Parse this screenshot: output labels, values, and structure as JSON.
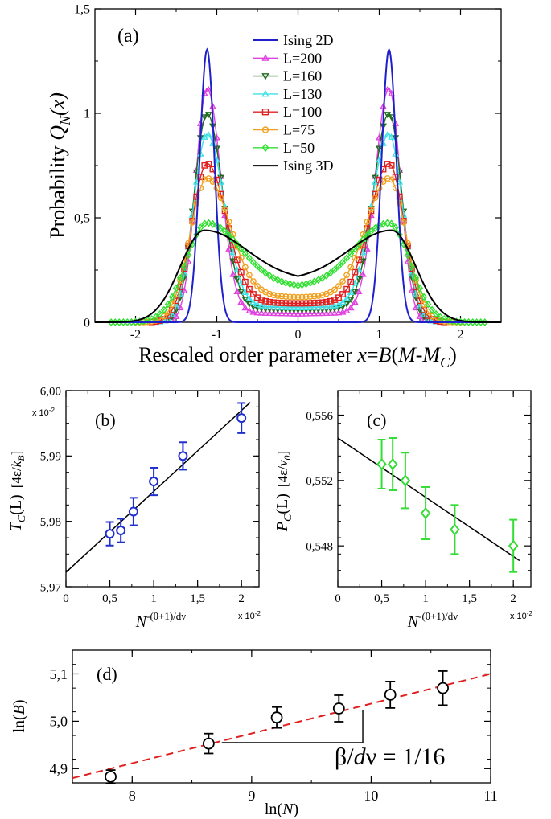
{
  "colors": {
    "ising2d": "#1f1fcc",
    "L200": "#e040e0",
    "L160": "#1e6b1e",
    "L130": "#3fe0e8",
    "L100": "#e02020",
    "L75": "#f0a020",
    "L50": "#30e030",
    "ising3d": "#000000",
    "tc": "#1f2fd0",
    "pc": "#33dd33",
    "fitD": "#e02020"
  },
  "chart_data": [
    {
      "id": "a",
      "type": "line",
      "panel_label": "(a)",
      "xlabel_prefix": "Rescaled order parameter ",
      "xlabel_var": "x",
      "xlabel_eq": "=",
      "xlabel_B": "B",
      "xlabel_open": "(",
      "xlabel_M": "M-M",
      "xlabel_sub": "C",
      "xlabel_close": ")",
      "ylabel_prefix": "Probability ",
      "ylabel_Q": "Q",
      "ylabel_sub": "N",
      "ylabel_arg": "(x)",
      "xlim": [
        -2.5,
        2.5
      ],
      "ylim": [
        0,
        1.5
      ],
      "xticks": [
        -2,
        -1,
        0,
        1,
        2
      ],
      "xtick_labels": [
        "-2",
        "-1",
        "0",
        "1",
        "2"
      ],
      "yticks": [
        0,
        0.5,
        1,
        1.5
      ],
      "ytick_labels": [
        "0",
        "0,5",
        "1",
        "1,5"
      ],
      "legend_position": "top-center",
      "series": [
        {
          "name": "Ising 2D",
          "key": "ising2d",
          "marker": "none",
          "peak": 1.305,
          "center": 0.0,
          "valley": 0.0,
          "x0": 1.12,
          "wl": 0.09,
          "wr": 0.09,
          "xmin": -2.5,
          "xmax": 2.5
        },
        {
          "name": "L=200",
          "key": "L200",
          "marker": "triangle-up",
          "peak": 1.12,
          "center": 0.04,
          "valley": 0.05,
          "x0": 1.12,
          "wl": 0.17,
          "wr": 0.14,
          "xmin": -1.55,
          "xmax": 1.55
        },
        {
          "name": "L=160",
          "key": "L160",
          "marker": "triangle-down",
          "peak": 1.0,
          "center": 0.06,
          "valley": 0.07,
          "x0": 1.12,
          "wl": 0.19,
          "wr": 0.16,
          "xmin": -1.6,
          "xmax": 1.6
        },
        {
          "name": "L=130",
          "key": "L130",
          "marker": "triangle-up",
          "peak": 0.9,
          "center": 0.07,
          "valley": 0.08,
          "x0": 1.12,
          "wl": 0.21,
          "wr": 0.17,
          "xmin": -1.7,
          "xmax": 1.7
        },
        {
          "name": "L=100",
          "key": "L100",
          "marker": "square",
          "peak": 0.76,
          "center": 0.09,
          "valley": 0.1,
          "x0": 1.12,
          "wl": 0.24,
          "wr": 0.19,
          "xmin": -1.8,
          "xmax": 1.8
        },
        {
          "name": "L=75",
          "key": "L75",
          "marker": "circle",
          "peak": 0.69,
          "center": 0.12,
          "valley": 0.13,
          "x0": 1.12,
          "wl": 0.28,
          "wr": 0.21,
          "xmin": -2.0,
          "xmax": 2.0
        },
        {
          "name": "L=50",
          "key": "L50",
          "marker": "diamond",
          "peak": 0.475,
          "center": 0.17,
          "valley": 0.19,
          "x0": 1.12,
          "wl": 0.4,
          "wr": 0.26,
          "xmin": -2.3,
          "xmax": 2.3
        },
        {
          "name": "Ising 3D",
          "key": "ising3d",
          "marker": "none",
          "peak": 0.44,
          "center": 0.2,
          "valley": 0.2,
          "x0": 1.15,
          "wl": 0.52,
          "wr": 0.3,
          "xmin": -2.5,
          "xmax": 2.5
        }
      ]
    },
    {
      "id": "b",
      "type": "scatter",
      "panel_label": "(b)",
      "xlabel_N": "N",
      "xlabel_exp": "-(θ+1)/dν",
      "ylabel_T": "T",
      "ylabel_sub": "C",
      "ylabel_arg": "(L)",
      "ylabel_unit_open": "[4ε/",
      "ylabel_unit_k": "k",
      "ylabel_unit_sub": "B",
      "ylabel_unit_close": "]",
      "x_multiplier": "x 10",
      "x_multiplier_exp": "-2",
      "y_multiplier": "x 10",
      "y_multiplier_exp": "-2",
      "xlim": [
        0,
        2.2
      ],
      "ylim": [
        5.97,
        6.0
      ],
      "xticks": [
        0,
        0.5,
        1,
        1.5,
        2
      ],
      "xtick_labels": [
        "0",
        "0,5",
        "1",
        "1,5",
        "2"
      ],
      "yticks": [
        5.97,
        5.98,
        5.99,
        6.0
      ],
      "ytick_labels": [
        "5,97",
        "5,98",
        "5,99",
        "6,00"
      ],
      "x": [
        0.5,
        0.625,
        0.769,
        1.0,
        1.333,
        2.0
      ],
      "y": [
        5.9781,
        5.9786,
        5.9815,
        5.9861,
        5.99,
        5.9958
      ],
      "err": [
        0.0018,
        0.0018,
        0.0021,
        0.0021,
        0.0021,
        0.0023
      ],
      "fit": {
        "x0": 0,
        "y0": 5.9722,
        "x1": 2.1,
        "y1": 5.9982
      }
    },
    {
      "id": "c",
      "type": "scatter",
      "panel_label": "(c)",
      "xlabel_N": "N",
      "xlabel_exp": "-(θ+1)/dν",
      "ylabel_P": "P",
      "ylabel_sub": "C",
      "ylabel_arg": "(L)",
      "ylabel_unit_open": "[4ε/",
      "ylabel_unit_v": "v",
      "ylabel_unit_sub": "0",
      "ylabel_unit_close": "]",
      "x_multiplier": "x 10",
      "x_multiplier_exp": "-2",
      "xlim": [
        0,
        2.2
      ],
      "ylim": [
        0.5455,
        0.5575
      ],
      "xticks": [
        0,
        0.5,
        1,
        1.5,
        2
      ],
      "xtick_labels": [
        "0",
        "0,5",
        "1",
        "1,5",
        "2"
      ],
      "yticks": [
        0.548,
        0.552,
        0.556
      ],
      "ytick_labels": [
        "0,548",
        "0,552",
        "0,556"
      ],
      "x": [
        0.5,
        0.625,
        0.769,
        1.0,
        1.333,
        2.0
      ],
      "y": [
        0.553,
        0.553,
        0.552,
        0.55,
        0.549,
        0.548
      ],
      "err": [
        0.0015,
        0.0016,
        0.0017,
        0.0016,
        0.0015,
        0.0016
      ],
      "fit": {
        "x0": 0,
        "y0": 0.5546,
        "x1": 2.07,
        "y1": 0.5471
      }
    },
    {
      "id": "d",
      "type": "scatter",
      "panel_label": "(d)",
      "xlabel_ln": "ln(",
      "xlabel_N": "N",
      "xlabel_close": ")",
      "ylabel_ln": "ln(",
      "ylabel_B": "B",
      "ylabel_close": ")",
      "annotation_beta": "β/",
      "annotation_d": "d",
      "annotation_rest": "ν = 1/16",
      "xlim": [
        7.5,
        11
      ],
      "ylim": [
        4.87,
        5.15
      ],
      "xticks": [
        8,
        9,
        10,
        11
      ],
      "xtick_labels": [
        "8",
        "9",
        "10",
        "11"
      ],
      "yticks": [
        4.9,
        5.0,
        5.1
      ],
      "ytick_labels": [
        "4,9",
        "5,0",
        "5,1"
      ],
      "x": [
        7.82,
        8.64,
        9.21,
        9.73,
        10.16,
        10.6
      ],
      "y": [
        4.883,
        4.953,
        5.008,
        5.027,
        5.056,
        5.07
      ],
      "err": [
        0.014,
        0.021,
        0.022,
        0.028,
        0.028,
        0.036
      ],
      "fit": {
        "x0": 7.5,
        "y0": 4.88,
        "x1": 11.0,
        "y1": 5.1
      },
      "slope_triangle": {
        "x0": 8.75,
        "x1": 9.93,
        "y0": 4.955,
        "y1": 5.024
      }
    }
  ]
}
